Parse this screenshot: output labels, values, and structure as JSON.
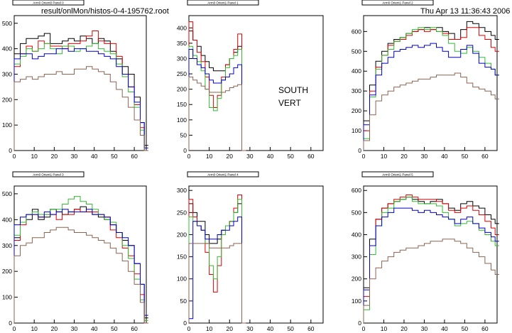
{
  "page": {
    "file_path": "result/onlMon/histos-0-4-195762.root",
    "timestamp": "Thu Apr 13 11:36:43 2006",
    "note_line1": "SOUTH",
    "note_line2": "VERT"
  },
  "colors": {
    "black": "#000000",
    "red": "#e00000",
    "green": "#33bb33",
    "blue": "#0000cc",
    "brown": "#8b6352"
  },
  "chart_data": [
    {
      "type": "line",
      "title": "Arm0 Orient0 Panel 0",
      "xlim": [
        0,
        66
      ],
      "ylim": [
        0,
        530
      ],
      "xticks": [
        0,
        10,
        20,
        30,
        40,
        50,
        60
      ],
      "yticks": [
        0,
        100,
        200,
        300,
        400,
        500
      ],
      "x": [
        0,
        3,
        6,
        9,
        12,
        15,
        18,
        21,
        24,
        27,
        30,
        33,
        36,
        39,
        42,
        45,
        48,
        51,
        54,
        57,
        60,
        63,
        65
      ],
      "series": [
        {
          "color": "black",
          "values": [
            380,
            420,
            440,
            440,
            450,
            460,
            420,
            420,
            430,
            440,
            430,
            450,
            440,
            420,
            440,
            430,
            390,
            360,
            330,
            300,
            210,
            110,
            20
          ]
        },
        {
          "color": "red",
          "values": [
            330,
            380,
            410,
            390,
            430,
            420,
            410,
            410,
            400,
            420,
            420,
            430,
            450,
            470,
            430,
            420,
            420,
            370,
            300,
            250,
            180,
            90,
            0
          ]
        },
        {
          "color": "green",
          "values": [
            340,
            370,
            400,
            390,
            400,
            420,
            400,
            380,
            410,
            410,
            390,
            400,
            410,
            420,
            400,
            390,
            380,
            340,
            290,
            230,
            170,
            80,
            0
          ]
        },
        {
          "color": "blue",
          "values": [
            360,
            380,
            380,
            360,
            370,
            380,
            380,
            400,
            400,
            390,
            400,
            400,
            390,
            390,
            380,
            370,
            360,
            330,
            300,
            250,
            190,
            110,
            10
          ]
        },
        {
          "color": "brown",
          "values": [
            270,
            280,
            290,
            280,
            290,
            300,
            300,
            310,
            300,
            300,
            320,
            320,
            330,
            320,
            310,
            300,
            270,
            240,
            210,
            170,
            120,
            60,
            0
          ]
        }
      ]
    },
    {
      "type": "line",
      "title": "Arm0 Orient1 Panel 1",
      "xlim": [
        0,
        66
      ],
      "ylim": [
        0,
        440
      ],
      "xticks": [
        0,
        10,
        20,
        30,
        40,
        50,
        60
      ],
      "yticks": [
        0,
        50,
        100,
        150,
        200,
        250,
        300,
        350,
        400
      ],
      "x": [
        0,
        2,
        4,
        6,
        8,
        10,
        12,
        14,
        16,
        18,
        20,
        22,
        24,
        26
      ],
      "series": [
        {
          "color": "black",
          "values": [
            390,
            360,
            340,
            310,
            290,
            270,
            260,
            260,
            260,
            280,
            300,
            320,
            340,
            0
          ]
        },
        {
          "color": "red",
          "values": [
            420,
            360,
            320,
            290,
            240,
            180,
            140,
            180,
            240,
            280,
            300,
            330,
            380,
            0
          ]
        },
        {
          "color": "green",
          "values": [
            340,
            310,
            290,
            260,
            200,
            140,
            130,
            170,
            230,
            270,
            300,
            310,
            330,
            0
          ]
        },
        {
          "color": "blue",
          "values": [
            330,
            300,
            280,
            270,
            250,
            230,
            220,
            220,
            230,
            240,
            250,
            270,
            280,
            0
          ]
        },
        {
          "color": "brown",
          "values": [
            240,
            230,
            220,
            210,
            200,
            190,
            190,
            190,
            190,
            195,
            205,
            210,
            215,
            0
          ]
        }
      ]
    },
    {
      "type": "line",
      "title": "Arm0 Orient1 Panel 2",
      "xlim": [
        0,
        66
      ],
      "ylim": [
        0,
        680
      ],
      "xticks": [
        0,
        10,
        20,
        30,
        40,
        50,
        60
      ],
      "yticks": [
        0,
        100,
        200,
        300,
        400,
        500,
        600
      ],
      "x": [
        0,
        3,
        6,
        9,
        12,
        15,
        18,
        21,
        24,
        27,
        30,
        33,
        36,
        39,
        42,
        45,
        48,
        51,
        54,
        57,
        60,
        63,
        65
      ],
      "series": [
        {
          "color": "black",
          "values": [
            150,
            330,
            450,
            500,
            540,
            560,
            570,
            590,
            600,
            610,
            620,
            610,
            620,
            600,
            590,
            560,
            610,
            650,
            640,
            620,
            600,
            580,
            560
          ]
        },
        {
          "color": "red",
          "values": [
            100,
            300,
            420,
            480,
            530,
            550,
            560,
            580,
            600,
            610,
            600,
            610,
            600,
            590,
            560,
            560,
            570,
            620,
            620,
            580,
            560,
            520,
            500
          ]
        },
        {
          "color": "green",
          "values": [
            60,
            270,
            410,
            480,
            510,
            550,
            570,
            590,
            610,
            620,
            610,
            620,
            600,
            580,
            540,
            500,
            490,
            520,
            500,
            470,
            440,
            410,
            380
          ]
        },
        {
          "color": "blue",
          "values": [
            130,
            280,
            380,
            440,
            470,
            500,
            510,
            520,
            530,
            520,
            530,
            540,
            520,
            500,
            470,
            470,
            510,
            530,
            490,
            440,
            420,
            410,
            380
          ]
        },
        {
          "color": "brown",
          "values": [
            50,
            180,
            250,
            280,
            300,
            320,
            330,
            340,
            350,
            360,
            360,
            370,
            380,
            380,
            380,
            390,
            370,
            340,
            320,
            310,
            300,
            280,
            260
          ]
        }
      ]
    },
    {
      "type": "line",
      "title": "Arm0 Orient1 Panel 3",
      "xlim": [
        0,
        66
      ],
      "ylim": [
        0,
        530
      ],
      "xticks": [
        0,
        10,
        20,
        30,
        40,
        50,
        60
      ],
      "yticks": [
        0,
        100,
        200,
        300,
        400,
        500
      ],
      "x": [
        0,
        3,
        6,
        9,
        12,
        15,
        18,
        21,
        24,
        27,
        30,
        33,
        36,
        39,
        42,
        45,
        48,
        51,
        54,
        57,
        60,
        63,
        65
      ],
      "series": [
        {
          "color": "black",
          "values": [
            330,
            390,
            400,
            440,
            400,
            410,
            440,
            430,
            420,
            430,
            440,
            450,
            430,
            420,
            410,
            400,
            380,
            350,
            320,
            300,
            230,
            150,
            20
          ]
        },
        {
          "color": "red",
          "values": [
            320,
            380,
            420,
            420,
            410,
            420,
            420,
            400,
            420,
            420,
            440,
            430,
            430,
            430,
            420,
            410,
            360,
            330,
            290,
            260,
            190,
            110,
            0
          ]
        },
        {
          "color": "green",
          "values": [
            340,
            390,
            420,
            430,
            420,
            420,
            440,
            440,
            460,
            480,
            490,
            470,
            460,
            440,
            420,
            400,
            390,
            350,
            300,
            250,
            170,
            90,
            10
          ]
        },
        {
          "color": "blue",
          "values": [
            380,
            410,
            420,
            420,
            410,
            430,
            420,
            430,
            440,
            430,
            430,
            430,
            440,
            420,
            420,
            410,
            380,
            350,
            330,
            300,
            230,
            150,
            30
          ]
        },
        {
          "color": "brown",
          "values": [
            260,
            300,
            310,
            330,
            330,
            350,
            360,
            370,
            370,
            360,
            350,
            350,
            340,
            330,
            320,
            310,
            290,
            270,
            240,
            200,
            150,
            80,
            0
          ]
        }
      ]
    },
    {
      "type": "line",
      "title": "Arm0 Orient1 Panel 4",
      "xlim": [
        0,
        66
      ],
      "ylim": [
        0,
        310
      ],
      "xticks": [
        0,
        10,
        20,
        30,
        40,
        50,
        60
      ],
      "yticks": [
        0,
        50,
        100,
        150,
        200,
        250,
        300
      ],
      "x": [
        0,
        2,
        4,
        6,
        8,
        10,
        12,
        14,
        16,
        18,
        20,
        22,
        24,
        26
      ],
      "series": [
        {
          "color": "black",
          "values": [
            270,
            250,
            230,
            230,
            200,
            180,
            180,
            190,
            210,
            220,
            230,
            250,
            270,
            0
          ]
        },
        {
          "color": "red",
          "values": [
            280,
            240,
            220,
            210,
            160,
            110,
            70,
            130,
            200,
            220,
            230,
            260,
            290,
            0
          ]
        },
        {
          "color": "green",
          "values": [
            240,
            230,
            220,
            210,
            180,
            130,
            100,
            150,
            200,
            220,
            230,
            250,
            280,
            0
          ]
        },
        {
          "color": "blue",
          "values": [
            10,
            230,
            220,
            210,
            190,
            190,
            190,
            200,
            210,
            210,
            220,
            230,
            240,
            0
          ]
        },
        {
          "color": "brown",
          "values": [
            180,
            180,
            180,
            180,
            180,
            170,
            170,
            170,
            170,
            170,
            175,
            180,
            180,
            0
          ]
        }
      ]
    },
    {
      "type": "line",
      "title": "Arm0 Orient1 Panel 5",
      "xlim": [
        0,
        66
      ],
      "ylim": [
        0,
        620
      ],
      "xticks": [
        0,
        10,
        20,
        30,
        40,
        50,
        60
      ],
      "yticks": [
        0,
        100,
        200,
        300,
        400,
        500,
        600
      ],
      "x": [
        0,
        3,
        6,
        9,
        12,
        15,
        18,
        21,
        24,
        27,
        30,
        33,
        36,
        39,
        42,
        45,
        48,
        51,
        54,
        57,
        60,
        63,
        65
      ],
      "series": [
        {
          "color": "black",
          "values": [
            160,
            380,
            470,
            520,
            540,
            550,
            560,
            570,
            560,
            550,
            540,
            550,
            560,
            540,
            520,
            510,
            540,
            550,
            530,
            520,
            490,
            470,
            450
          ]
        },
        {
          "color": "red",
          "values": [
            120,
            350,
            470,
            520,
            540,
            560,
            570,
            580,
            570,
            560,
            560,
            560,
            550,
            540,
            510,
            500,
            520,
            530,
            510,
            490,
            460,
            430,
            400
          ]
        },
        {
          "color": "green",
          "values": [
            60,
            310,
            440,
            500,
            520,
            550,
            560,
            570,
            550,
            540,
            540,
            540,
            530,
            500,
            470,
            440,
            450,
            460,
            450,
            420,
            400,
            370,
            350
          ]
        },
        {
          "color": "blue",
          "values": [
            150,
            350,
            440,
            480,
            500,
            520,
            520,
            520,
            510,
            500,
            510,
            500,
            490,
            480,
            470,
            450,
            470,
            480,
            450,
            430,
            410,
            390,
            370
          ]
        },
        {
          "color": "brown",
          "values": [
            80,
            200,
            250,
            280,
            300,
            320,
            330,
            340,
            340,
            350,
            360,
            370,
            370,
            380,
            380,
            370,
            360,
            340,
            320,
            300,
            270,
            240,
            220
          ]
        }
      ]
    }
  ]
}
